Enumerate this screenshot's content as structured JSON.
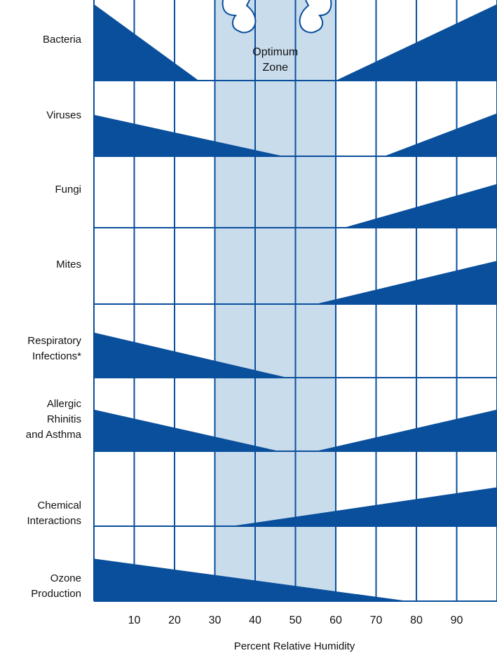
{
  "chart_data": {
    "type": "area",
    "xlabel": "Percent Relative Humidity",
    "xlim": [
      0,
      100
    ],
    "xticks": [
      10,
      20,
      30,
      40,
      50,
      60,
      70,
      80,
      90
    ],
    "optimum_zone": {
      "label": "Optimum Zone",
      "range": [
        30,
        60
      ]
    },
    "colors": {
      "fill": "#0a4f9c",
      "zone": "#c9dcec",
      "grid": "#0a4f9c",
      "text": "#111111"
    },
    "rows": [
      {
        "label": "Bacteria",
        "segments": [
          {
            "x": [
              0,
              26
            ],
            "level": [
              1,
              0
            ]
          },
          {
            "x": [
              60,
              100
            ],
            "level": [
              0,
              1
            ]
          }
        ]
      },
      {
        "label": "Viruses",
        "segments": [
          {
            "x": [
              0,
              47
            ],
            "level": [
              0.58,
              0
            ]
          },
          {
            "x": [
              72,
              100
            ],
            "level": [
              0,
              0.6
            ]
          }
        ]
      },
      {
        "label": "Fungi",
        "segments": [
          {
            "x": [
              62,
              100
            ],
            "level": [
              0,
              0.65
            ]
          }
        ]
      },
      {
        "label": "Mites",
        "segments": [
          {
            "x": [
              55,
              100
            ],
            "level": [
              0,
              0.6
            ]
          }
        ]
      },
      {
        "label": "Respiratory Infections*",
        "segments": [
          {
            "x": [
              0,
              48
            ],
            "level": [
              0.65,
              0
            ]
          }
        ]
      },
      {
        "label": "Allergic Rhinitis and Asthma",
        "segments": [
          {
            "x": [
              0,
              46
            ],
            "level": [
              0.6,
              0
            ]
          },
          {
            "x": [
              46,
              55
            ],
            "level": [
              0,
              0
            ]
          },
          {
            "x": [
              55,
              100
            ],
            "level": [
              0,
              0.6
            ]
          }
        ]
      },
      {
        "label": "Chemical Interactions",
        "segments": [
          {
            "x": [
              34,
              100
            ],
            "level": [
              0,
              0.55
            ]
          }
        ]
      },
      {
        "label": "Ozone Production",
        "segments": [
          {
            "x": [
              0,
              78
            ],
            "level": [
              0.6,
              0
            ]
          }
        ]
      }
    ]
  }
}
